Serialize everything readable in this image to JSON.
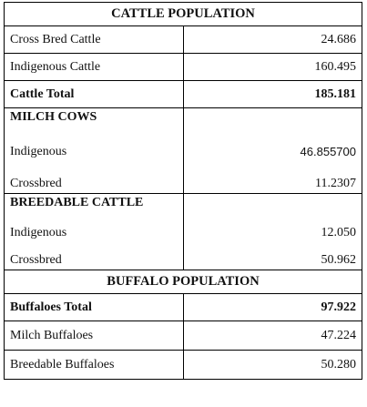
{
  "cattle_population": {
    "heading": "CATTLE POPULATION",
    "rows": [
      {
        "label": "Cross Bred Cattle",
        "value": "24.686"
      },
      {
        "label": "Indigenous Cattle",
        "value": "160.495"
      }
    ],
    "total": {
      "label": "Cattle Total",
      "value": "185.181"
    }
  },
  "milch_cows": {
    "heading": "MILCH COWS",
    "rows": [
      {
        "label": "Indigenous",
        "value": "46.855700"
      },
      {
        "label": "Crossbred",
        "value": "11.2307"
      }
    ]
  },
  "breedable_cattle": {
    "heading": "BREEDABLE CATTLE",
    "rows": [
      {
        "label": "Indigenous",
        "value": "12.050"
      },
      {
        "label": "Crossbred",
        "value": "50.962"
      }
    ]
  },
  "buffalo_population": {
    "heading": "BUFFALO POPULATION",
    "total": {
      "label": "Buffaloes Total",
      "value": "97.922"
    },
    "rows": [
      {
        "label": "Milch Buffaloes",
        "value": "47.224"
      },
      {
        "label": "Breedable Buffaloes",
        "value": "50.280"
      }
    ]
  }
}
